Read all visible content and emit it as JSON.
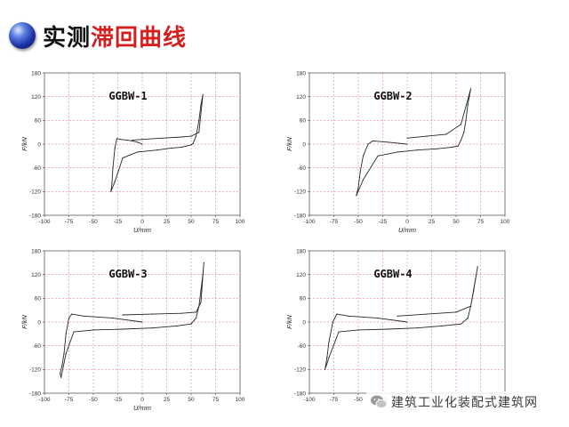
{
  "header": {
    "title_part1": "实测",
    "title_part2": "滞回曲线"
  },
  "watermark": {
    "text": "建筑工业化装配式建筑网"
  },
  "chart_data": [
    {
      "type": "line",
      "title": "GGBW-1",
      "xlabel": "U/mm",
      "ylabel": "F/kN",
      "xlim": [
        -100,
        100
      ],
      "ylim": [
        -180,
        180
      ],
      "xticks": [
        -100,
        -75,
        -50,
        -25,
        0,
        25,
        50,
        75,
        100
      ],
      "yticks": [
        180,
        120,
        60,
        0,
        -60,
        -120,
        -180
      ],
      "series": [
        {
          "x": [
            0,
            -5,
            -10,
            -15,
            -22,
            -26,
            -28,
            -30,
            -31,
            -32,
            -28,
            -20,
            -5,
            15,
            30,
            40,
            45,
            50,
            52,
            55,
            58,
            60,
            62,
            58,
            50,
            40,
            20,
            0,
            -10
          ],
          "y": [
            0,
            5,
            8,
            10,
            12,
            14,
            -10,
            -60,
            -100,
            -120,
            -95,
            -35,
            -20,
            -15,
            -10,
            -8,
            -5,
            -2,
            2,
            20,
            60,
            100,
            125,
            30,
            20,
            18,
            15,
            12,
            10
          ]
        }
      ]
    },
    {
      "type": "line",
      "title": "GGBW-2",
      "xlabel": "U/mm",
      "ylabel": "F/kN",
      "xlim": [
        -100,
        100
      ],
      "ylim": [
        -180,
        180
      ],
      "xticks": [
        -100,
        -75,
        -50,
        -25,
        0,
        25,
        50,
        75,
        100
      ],
      "yticks": [
        180,
        120,
        60,
        0,
        -60,
        -120,
        -180
      ],
      "series": [
        {
          "x": [
            0,
            -20,
            -35,
            -40,
            -45,
            -48,
            -50,
            -52,
            -45,
            -30,
            -10,
            10,
            30,
            45,
            52,
            55,
            58,
            60,
            62,
            65,
            55,
            40,
            20,
            0
          ],
          "y": [
            0,
            5,
            8,
            0,
            -30,
            -70,
            -110,
            -130,
            -90,
            -30,
            -20,
            -15,
            -12,
            -8,
            -5,
            10,
            30,
            60,
            100,
            140,
            50,
            25,
            20,
            15
          ]
        }
      ]
    },
    {
      "type": "line",
      "title": "GGBW-3",
      "xlabel": "U/mm",
      "ylabel": "F/kN",
      "xlim": [
        -100,
        100
      ],
      "ylim": [
        -180,
        180
      ],
      "xticks": [
        -100,
        -75,
        -50,
        -25,
        0,
        25,
        50,
        75,
        100
      ],
      "yticks": [
        180,
        120,
        60,
        0,
        -60,
        -120,
        -180
      ],
      "series": [
        {
          "x": [
            0,
            -30,
            -60,
            -72,
            -75,
            -78,
            -80,
            -82,
            -84,
            -83,
            -78,
            -70,
            -50,
            -20,
            10,
            35,
            50,
            55,
            58,
            60,
            62,
            63,
            60,
            55,
            40,
            10,
            -20
          ],
          "y": [
            0,
            10,
            15,
            20,
            10,
            -30,
            -80,
            -110,
            -130,
            -140,
            -80,
            -25,
            -20,
            -18,
            -15,
            -10,
            -5,
            10,
            40,
            80,
            120,
            150,
            50,
            25,
            22,
            20,
            18
          ]
        }
      ]
    },
    {
      "type": "line",
      "title": "GGBW-4",
      "xlabel": "U/mm",
      "ylabel": "F/kN",
      "xlim": [
        -100,
        100
      ],
      "ylim": [
        -180,
        180
      ],
      "xticks": [
        -100,
        -75,
        -50,
        -25,
        0,
        25,
        50,
        75,
        100
      ],
      "yticks": [
        180,
        120,
        60,
        0,
        -60,
        -120,
        -180
      ],
      "series": [
        {
          "x": [
            0,
            -30,
            -60,
            -72,
            -76,
            -80,
            -82,
            -84,
            -80,
            -70,
            -50,
            -20,
            10,
            35,
            55,
            62,
            65,
            68,
            70,
            72,
            65,
            50,
            20,
            -10
          ],
          "y": [
            0,
            10,
            15,
            20,
            0,
            -50,
            -90,
            -120,
            -90,
            -25,
            -20,
            -18,
            -15,
            -10,
            -5,
            10,
            40,
            80,
            110,
            140,
            40,
            25,
            20,
            15
          ]
        }
      ]
    }
  ]
}
